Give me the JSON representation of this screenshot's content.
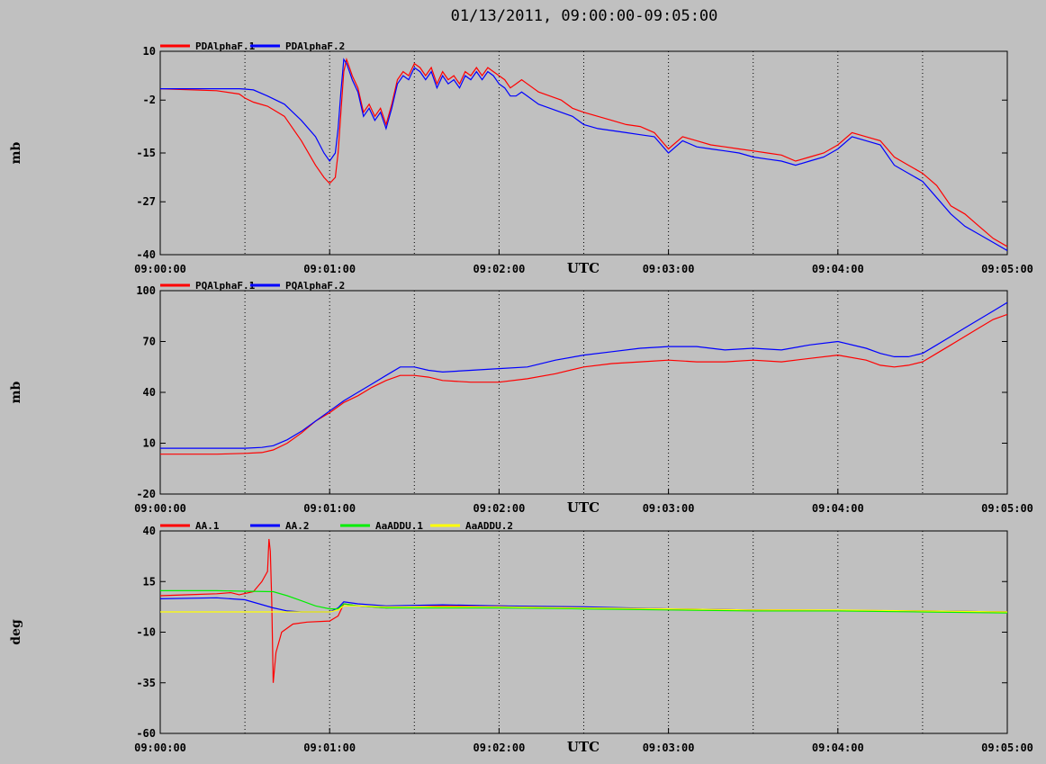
{
  "title": "01/13/2011, 09:00:00-09:05:00",
  "colors": {
    "background": "#c0c0c0",
    "red": "#ff0000",
    "blue": "#0000ff",
    "green": "#00ee00",
    "yellow": "#ffff00"
  },
  "chart_data": [
    {
      "type": "line",
      "ylabel": "mb",
      "xlabel": "UTC",
      "x_ticks": [
        "09:00:00",
        "09:01:00",
        "09:02:00",
        "09:03:00",
        "09:04:00",
        "09:05:00"
      ],
      "y_ticks": [
        10,
        -2,
        -15,
        -27,
        -40
      ],
      "ylim": [
        -40,
        10
      ],
      "xlim_seconds": [
        0,
        300
      ],
      "grid": "dotted vertical",
      "legend": "top-left",
      "series": [
        {
          "name": "PDAlphaF.1",
          "color": "red",
          "x": [
            0,
            20,
            28,
            30,
            33,
            38,
            44,
            50,
            55,
            58,
            60,
            62,
            63,
            64,
            65,
            66,
            67,
            68,
            70,
            72,
            74,
            76,
            78,
            80,
            82,
            84,
            86,
            88,
            90,
            92,
            94,
            96,
            98,
            100,
            102,
            104,
            106,
            108,
            110,
            112,
            114,
            116,
            118,
            120,
            122,
            124,
            126,
            128,
            130,
            134,
            138,
            142,
            146,
            150,
            155,
            160,
            165,
            170,
            175,
            180,
            185,
            190,
            195,
            200,
            205,
            210,
            215,
            220,
            225,
            230,
            235,
            240,
            245,
            250,
            255,
            260,
            265,
            270,
            275,
            280,
            285,
            290,
            295,
            300
          ],
          "y": [
            0.8,
            0.3,
            -0.5,
            -1.5,
            -2.5,
            -3.5,
            -6,
            -12,
            -18,
            -21,
            -22.5,
            -21,
            -15,
            -5,
            5,
            8,
            6,
            4,
            1,
            -5,
            -3,
            -6,
            -4,
            -8,
            -3,
            3,
            5,
            4,
            7,
            6,
            4,
            6,
            2,
            5,
            3,
            4,
            2,
            5,
            4,
            6,
            4,
            6,
            5,
            4,
            3,
            1,
            2,
            3,
            2,
            0,
            -1,
            -2,
            -4,
            -5,
            -6,
            -7,
            -8,
            -8.5,
            -10,
            -14,
            -11,
            -12,
            -13,
            -13.5,
            -14,
            -14.5,
            -15,
            -15.5,
            -17,
            -16,
            -15,
            -13,
            -10,
            -11,
            -12,
            -16,
            -18,
            -20,
            -23,
            -28,
            -30,
            -33,
            -36,
            -38
          ]
        },
        {
          "name": "PDAlphaF.2",
          "color": "blue",
          "x": [
            0,
            20,
            28,
            30,
            33,
            38,
            44,
            50,
            55,
            58,
            60,
            62,
            63,
            64,
            65,
            66,
            67,
            68,
            70,
            72,
            74,
            76,
            78,
            80,
            82,
            84,
            86,
            88,
            90,
            92,
            94,
            96,
            98,
            100,
            102,
            104,
            106,
            108,
            110,
            112,
            114,
            116,
            118,
            120,
            122,
            124,
            126,
            128,
            130,
            134,
            138,
            142,
            146,
            150,
            155,
            160,
            165,
            170,
            175,
            180,
            185,
            190,
            195,
            200,
            205,
            210,
            215,
            220,
            225,
            230,
            235,
            240,
            245,
            250,
            255,
            260,
            265,
            270,
            275,
            280,
            285,
            290,
            295,
            300
          ],
          "y": [
            0.8,
            0.8,
            0.8,
            0.7,
            0.5,
            -1,
            -3,
            -7,
            -11,
            -15,
            -17,
            -15,
            -9,
            0,
            8,
            7,
            5,
            3,
            0,
            -6,
            -4,
            -7,
            -5,
            -9,
            -4,
            2,
            4,
            3,
            6,
            5,
            3,
            5,
            1,
            4,
            2,
            3,
            1,
            4,
            3,
            5,
            3,
            5,
            4,
            2,
            1,
            -1,
            -1,
            0,
            -1,
            -3,
            -4,
            -5,
            -6,
            -8,
            -9,
            -9.5,
            -10,
            -10.5,
            -11,
            -15,
            -12,
            -13.5,
            -14,
            -14.5,
            -15,
            -16,
            -16.5,
            -17,
            -18,
            -17,
            -16,
            -14,
            -11,
            -12,
            -13,
            -18,
            -20,
            -22,
            -26,
            -30,
            -33,
            -35,
            -37,
            -39
          ]
        }
      ]
    },
    {
      "type": "line",
      "ylabel": "mb",
      "xlabel": "UTC",
      "x_ticks": [
        "09:00:00",
        "09:01:00",
        "09:02:00",
        "09:03:00",
        "09:04:00",
        "09:05:00"
      ],
      "y_ticks": [
        100,
        70,
        40,
        10,
        -20
      ],
      "ylim": [
        -20,
        100
      ],
      "xlim_seconds": [
        0,
        300
      ],
      "grid": "dotted vertical",
      "legend": "top-left",
      "series": [
        {
          "name": "PQAlphaF.1",
          "color": "red",
          "x": [
            0,
            20,
            30,
            36,
            40,
            45,
            50,
            55,
            60,
            65,
            70,
            75,
            80,
            85,
            90,
            95,
            100,
            110,
            120,
            130,
            140,
            150,
            160,
            170,
            180,
            190,
            200,
            210,
            220,
            230,
            240,
            250,
            255,
            260,
            265,
            270,
            275,
            280,
            285,
            290,
            295,
            300
          ],
          "y": [
            3.5,
            3.5,
            4,
            4.5,
            6,
            10,
            16,
            23,
            28,
            34,
            38,
            43,
            47,
            50,
            50,
            49,
            47,
            46,
            46,
            48,
            51,
            55,
            57,
            58,
            59,
            58,
            58,
            59,
            58,
            60,
            62,
            59,
            56,
            55,
            56,
            58,
            63,
            68,
            73,
            78,
            83,
            86
          ]
        },
        {
          "name": "PQAlphaF.2",
          "color": "blue",
          "x": [
            0,
            20,
            30,
            36,
            40,
            45,
            50,
            55,
            60,
            65,
            70,
            75,
            80,
            85,
            90,
            95,
            100,
            110,
            120,
            130,
            140,
            150,
            160,
            170,
            180,
            190,
            200,
            210,
            220,
            230,
            240,
            250,
            255,
            260,
            265,
            270,
            275,
            280,
            285,
            290,
            295,
            300
          ],
          "y": [
            7,
            7,
            7,
            7.5,
            8.5,
            12,
            17,
            23,
            29,
            35,
            40,
            45,
            50,
            55,
            55,
            53,
            52,
            53,
            54,
            55,
            59,
            62,
            64,
            66,
            67,
            67,
            65,
            66,
            65,
            68,
            70,
            66,
            63,
            61,
            61,
            63,
            68,
            73,
            78,
            83,
            88,
            93
          ]
        }
      ]
    },
    {
      "type": "line",
      "ylabel": "deg",
      "xlabel": "UTC",
      "x_ticks": [
        "09:00:00",
        "09:01:00",
        "09:02:00",
        "09:03:00",
        "09:04:00",
        "09:05:00"
      ],
      "y_ticks": [
        40,
        15,
        -10,
        -35,
        -60
      ],
      "ylim": [
        -60,
        40
      ],
      "xlim_seconds": [
        0,
        300
      ],
      "grid": "dotted vertical",
      "legend": "top-left",
      "series": [
        {
          "name": "AA.1",
          "color": "red",
          "x": [
            0,
            10,
            20,
            25,
            28,
            33,
            36,
            38,
            38.5,
            39,
            39.5,
            40,
            41,
            43,
            47,
            52,
            60,
            63,
            65,
            70,
            80,
            100,
            120,
            150,
            180,
            210,
            240,
            270,
            300
          ],
          "y": [
            8,
            8.5,
            9,
            9.5,
            8.5,
            10,
            15,
            20,
            36,
            30,
            5,
            -35,
            -20,
            -10,
            -6,
            -5,
            -4.5,
            -2,
            4,
            3,
            2,
            3,
            3,
            2,
            1.5,
            1,
            0.8,
            0.5,
            0
          ]
        },
        {
          "name": "AA.2",
          "color": "blue",
          "x": [
            0,
            20,
            30,
            40,
            45,
            50,
            55,
            60,
            63,
            65,
            70,
            80,
            100,
            120,
            150,
            180,
            210,
            240,
            270,
            300
          ],
          "y": [
            6.5,
            7,
            6,
            2,
            0.5,
            0,
            0,
            0,
            2,
            5,
            4,
            3,
            3.5,
            3,
            2.5,
            1.5,
            1,
            0.5,
            0.5,
            0
          ]
        },
        {
          "name": "AaADDU.1",
          "color": "green",
          "x": [
            0,
            20,
            30,
            40,
            45,
            50,
            55,
            60,
            63,
            65,
            70,
            80,
            100,
            120,
            150,
            180,
            210,
            240,
            270,
            300
          ],
          "y": [
            10.5,
            10.5,
            10.2,
            10,
            8,
            5.5,
            3,
            1.5,
            1.5,
            4,
            3,
            2,
            2,
            2,
            1.5,
            1,
            0.5,
            0.5,
            0,
            -0.5
          ]
        },
        {
          "name": "AaADDU.2",
          "color": "yellow",
          "x": [
            0,
            20,
            30,
            40,
            45,
            50,
            55,
            60,
            63,
            65,
            70,
            80,
            100,
            120,
            150,
            180,
            210,
            240,
            270,
            300
          ],
          "y": [
            0,
            0,
            0,
            0,
            0,
            0,
            0,
            0,
            1,
            3,
            3,
            2.5,
            2.5,
            2.5,
            2,
            1.5,
            1,
            1,
            0.5,
            0
          ]
        }
      ]
    }
  ]
}
